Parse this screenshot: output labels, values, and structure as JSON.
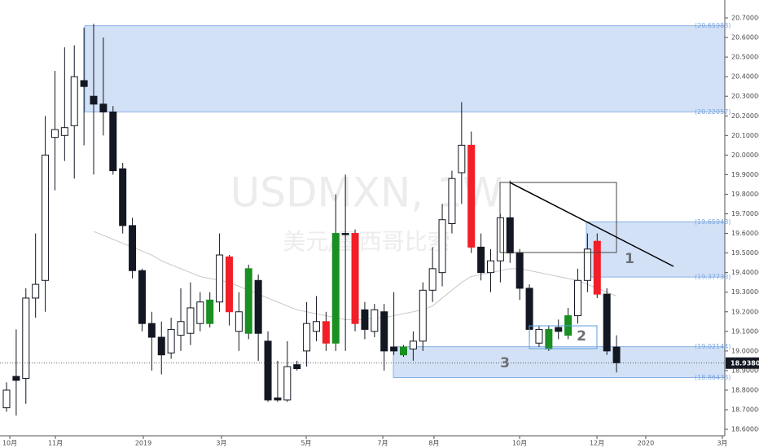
{
  "chart_data": {
    "type": "candlestick",
    "watermark": "USDMXN, 1W",
    "watermark_subtitle": "美元/墨西哥比索",
    "open": [
      18.71,
      18.87,
      18.86,
      19.27,
      19.36,
      20.09,
      20.1,
      20.15,
      20.38,
      20.3,
      20.26,
      20.22,
      19.93,
      19.64,
      19.41,
      19.14,
      19.07,
      18.99,
      19.08,
      19.09,
      19.14,
      19.14,
      19.25,
      19.48,
      19.1,
      19.09,
      19.36,
      19.05,
      18.76,
      18.75,
      18.93,
      19.0,
      19.1,
      19.15,
      19.04,
      19.6,
      19.6,
      19.21,
      19.1,
      19.2,
      19.02,
      18.98,
      19.01,
      19.05,
      19.31,
      19.4,
      19.65,
      19.91,
      20.05,
      19.53,
      19.4,
      19.46,
      19.68,
      19.5,
      19.32,
      19.04,
      19.01,
      19.12,
      19.08,
      19.18,
      19.36,
      19.56,
      19.29,
      19.02
    ],
    "high": [
      18.84,
      19.11,
      19.32,
      19.6,
      20.2,
      20.43,
      20.55,
      20.56,
      20.65,
      20.67,
      20.6,
      20.25,
      19.96,
      19.68,
      19.42,
      19.2,
      19.15,
      19.17,
      19.32,
      19.35,
      19.3,
      19.3,
      19.6,
      19.49,
      19.3,
      19.44,
      19.39,
      19.1,
      18.95,
      19.05,
      18.95,
      19.25,
      19.28,
      19.2,
      19.8,
      19.9,
      19.62,
      19.25,
      19.24,
      19.24,
      19.3,
      19.03,
      19.1,
      19.35,
      19.53,
      19.75,
      19.92,
      20.27,
      20.12,
      19.6,
      19.52,
      19.7,
      19.87,
      19.52,
      19.34,
      19.13,
      19.13,
      19.16,
      19.22,
      19.42,
      19.6,
      19.6,
      19.32,
      19.08
    ],
    "low": [
      18.69,
      18.67,
      18.73,
      19.17,
      19.2,
      19.82,
      19.97,
      19.88,
      20.05,
      19.9,
      20.1,
      19.9,
      19.6,
      19.37,
      19.1,
      18.9,
      18.88,
      18.96,
      19.0,
      19.03,
      19.1,
      19.12,
      19.2,
      19.13,
      19.0,
      19.06,
      18.95,
      18.74,
      18.74,
      18.74,
      18.9,
      18.92,
      19.05,
      19.0,
      19.0,
      19.0,
      19.1,
      19.06,
      19.07,
      18.9,
      18.98,
      18.97,
      18.95,
      19.0,
      19.25,
      19.33,
      19.6,
      19.75,
      19.5,
      19.36,
      19.3,
      19.35,
      19.45,
      19.26,
      19.05,
      19.02,
      19.0,
      19.06,
      19.06,
      19.14,
      19.3,
      19.27,
      18.98,
      18.89
    ],
    "close": [
      18.8,
      18.85,
      19.27,
      19.34,
      20.0,
      20.13,
      20.14,
      20.4,
      20.35,
      20.26,
      20.22,
      19.92,
      19.64,
      19.41,
      19.14,
      19.07,
      18.98,
      19.11,
      19.15,
      19.22,
      19.25,
      19.26,
      19.49,
      19.2,
      19.2,
      19.42,
      19.09,
      18.75,
      18.75,
      18.92,
      18.91,
      19.14,
      19.15,
      19.04,
      19.6,
      19.595,
      19.14,
      19.11,
      19.21,
      19.0,
      19.0,
      19.02,
      19.05,
      19.31,
      19.42,
      19.67,
      19.88,
      20.05,
      19.53,
      19.4,
      19.46,
      19.68,
      19.5,
      19.32,
      19.11,
      19.11,
      19.11,
      19.1,
      19.18,
      19.36,
      19.52,
      19.29,
      19.0,
      18.94
    ],
    "colors": [
      "#ffffff",
      "#131722",
      "#ffffff",
      "#ffffff",
      "#ffffff",
      "#ffffff",
      "#ffffff",
      "#ffffff",
      "#131722",
      "#131722",
      "#131722",
      "#131722",
      "#131722",
      "#131722",
      "#131722",
      "#131722",
      "#131722",
      "#ffffff",
      "#ffffff",
      "#ffffff",
      "#ffffff",
      "#1a8f22",
      "#ffffff",
      "#f21e28",
      "#ffffff",
      "#1a8f22",
      "#131722",
      "#131722",
      "#131722",
      "#ffffff",
      "#131722",
      "#ffffff",
      "#ffffff",
      "#f21e28",
      "#1a8f22",
      "#131722",
      "#f21e28",
      "#131722",
      "#ffffff",
      "#131722",
      "#131722",
      "#1a8f22",
      "#ffffff",
      "#ffffff",
      "#ffffff",
      "#ffffff",
      "#ffffff",
      "#ffffff",
      "#f21e28",
      "#131722",
      "#ffffff",
      "#ffffff",
      "#131722",
      "#131722",
      "#131722",
      "#ffffff",
      "#1a8f22",
      "#131722",
      "#1a8f22",
      "#ffffff",
      "#ffffff",
      "#f21e28",
      "#131722",
      "#131722"
    ],
    "ma": {
      "color": "#c8c8c8",
      "values": [
        null,
        null,
        null,
        null,
        null,
        null,
        null,
        null,
        null,
        19.61,
        19.59,
        19.57,
        19.55,
        19.53,
        19.51,
        19.49,
        19.46,
        19.44,
        19.42,
        19.4,
        19.38,
        19.37,
        19.36,
        19.35,
        19.33,
        19.31,
        19.29,
        19.27,
        19.25,
        19.23,
        19.21,
        19.2,
        19.19,
        19.18,
        19.17,
        19.16,
        19.16,
        19.16,
        19.17,
        19.17,
        19.18,
        19.19,
        19.2,
        19.21,
        19.23,
        19.27,
        19.31,
        19.35,
        19.38,
        19.39,
        19.4,
        19.41,
        19.42,
        19.42,
        19.41,
        19.4,
        19.39,
        19.38,
        19.37,
        19.36,
        19.34,
        19.32,
        19.3,
        19.28
      ]
    },
    "xlim": [
      -0.673,
      74.18
    ],
    "xticks": [
      {
        "value": 0.34,
        "label": "10月"
      },
      {
        "value": 5.05,
        "label": "11月"
      },
      {
        "value": 14.13,
        "label": "2019"
      },
      {
        "value": 22.2,
        "label": "3月"
      },
      {
        "value": 30.95,
        "label": "5月"
      },
      {
        "value": 38.86,
        "label": "7月"
      },
      {
        "value": 44.15,
        "label": "8月"
      },
      {
        "value": 52.99,
        "label": "10月"
      },
      {
        "value": 60.98,
        "label": "12月"
      },
      {
        "value": 66.02,
        "label": "2020"
      },
      {
        "value": 73.93,
        "label": "3月"
      }
    ],
    "ylim": [
      18.567,
      20.7915
    ],
    "yticks": [
      {
        "value": 18.6,
        "label": "18.60000"
      },
      {
        "value": 18.7,
        "label": "18.70000"
      },
      {
        "value": 18.8,
        "label": "18.80000"
      },
      {
        "value": 18.9,
        "label": "18.90000"
      },
      {
        "value": 19.0,
        "label": "19.00000"
      },
      {
        "value": 19.1,
        "label": "19.10000"
      },
      {
        "value": 19.2,
        "label": "19.20000"
      },
      {
        "value": 19.3,
        "label": "19.30000"
      },
      {
        "value": 19.4,
        "label": "19.40000"
      },
      {
        "value": 19.5,
        "label": "19.50000"
      },
      {
        "value": 19.6,
        "label": "19.60000"
      },
      {
        "value": 19.7,
        "label": "19.70000"
      },
      {
        "value": 19.8,
        "label": "19.80000"
      },
      {
        "value": 19.9,
        "label": "19.90000"
      },
      {
        "value": 20.0,
        "label": "20.00000"
      },
      {
        "value": 20.1,
        "label": "20.10000"
      },
      {
        "value": 20.2,
        "label": "20.20000"
      },
      {
        "value": 20.3,
        "label": "20.30000"
      },
      {
        "value": 20.4,
        "label": "20.40000"
      },
      {
        "value": 20.5,
        "label": "20.50000"
      },
      {
        "value": 20.6,
        "label": "20.60000"
      },
      {
        "value": 20.7,
        "label": "20.70000"
      }
    ],
    "zones": [
      {
        "top": {
          "value": 20.65983,
          "label": "(20.65983)"
        },
        "bottom": {
          "value": 20.22057,
          "label": "(20.22057)"
        }
      },
      {
        "top": {
          "value": 19.65948,
          "label": "(19.65948)"
        },
        "bottom": {
          "value": 19.37733,
          "label": "(19.37733)"
        }
      },
      {
        "top": {
          "value": 19.02144,
          "label": "(19.02144)"
        },
        "bottom": {
          "value": 18.86433,
          "label": "(18.86433)"
        }
      }
    ],
    "last_price": {
      "value": 18.938,
      "label": "18.93800"
    },
    "annotations": [
      "1",
      "2",
      "3"
    ]
  }
}
